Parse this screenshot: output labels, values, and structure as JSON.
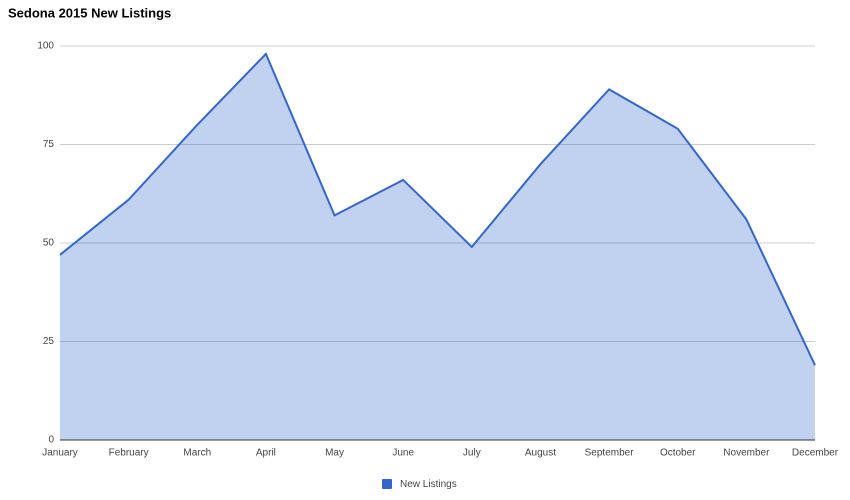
{
  "chart_data": {
    "type": "area",
    "title": "Sedona 2015 New Listings",
    "categories": [
      "January",
      "February",
      "March",
      "April",
      "May",
      "June",
      "July",
      "August",
      "September",
      "October",
      "November",
      "December"
    ],
    "series": [
      {
        "name": "New Listings",
        "color": "#3366cc",
        "values": [
          47,
          61,
          80,
          98,
          57,
          66,
          49,
          70,
          89,
          79,
          56,
          19
        ]
      }
    ],
    "ylim": [
      0,
      100
    ],
    "yticks": [
      0,
      25,
      50,
      75,
      100
    ],
    "grid": true,
    "legend": "bottom"
  }
}
